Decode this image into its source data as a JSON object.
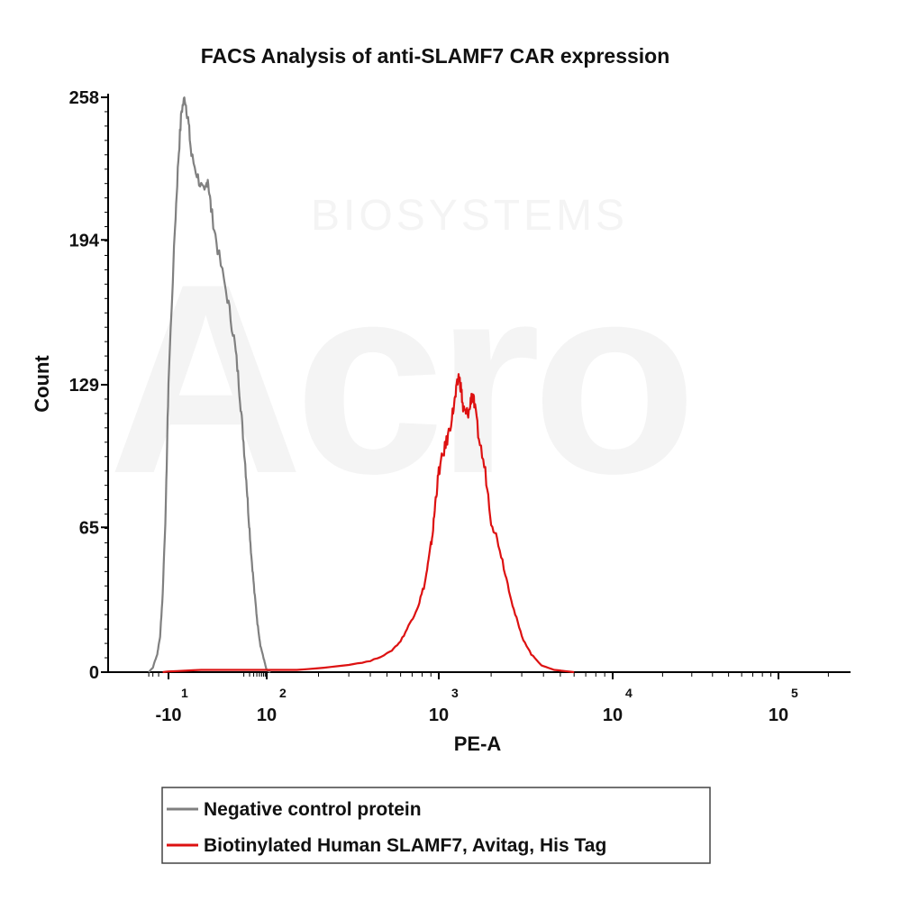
{
  "chart_data": {
    "type": "line",
    "title": "FACS Analysis of anti-SLAMF7 CAR expression",
    "xlabel": "PE-A",
    "ylabel": "Count",
    "x_scale": "biexponential",
    "ylim": [
      0,
      258
    ],
    "y_ticks": [
      "0",
      "65",
      "129",
      "194",
      "258"
    ],
    "x_ticks": [
      {
        "label": "-10",
        "exponent": "1",
        "value": -10
      },
      {
        "label": "10",
        "exponent": "2",
        "value": 100
      },
      {
        "label": "10",
        "exponent": "3",
        "value": 1000
      },
      {
        "label": "10",
        "exponent": "4",
        "value": 10000
      },
      {
        "label": "10",
        "exponent": "5",
        "value": 100000
      }
    ],
    "legend_position": "bottom",
    "series": [
      {
        "name": "Negative control protein",
        "color": "#808080",
        "points": [
          [
            -40,
            0
          ],
          [
            -30,
            2
          ],
          [
            -22,
            8
          ],
          [
            -18,
            16
          ],
          [
            -15,
            35
          ],
          [
            -12,
            75
          ],
          [
            -10,
            130
          ],
          [
            -8,
            200
          ],
          [
            -7,
            230
          ],
          [
            -6,
            252
          ],
          [
            -5,
            258
          ],
          [
            -4,
            248
          ],
          [
            -3,
            232
          ],
          [
            -1,
            222
          ],
          [
            1,
            214
          ],
          [
            2,
            222
          ],
          [
            3,
            208
          ],
          [
            5,
            190
          ],
          [
            8,
            168
          ],
          [
            10,
            150
          ],
          [
            14,
            130
          ],
          [
            18,
            110
          ],
          [
            23,
            90
          ],
          [
            28,
            70
          ],
          [
            34,
            52
          ],
          [
            42,
            36
          ],
          [
            52,
            22
          ],
          [
            64,
            12
          ],
          [
            78,
            7
          ],
          [
            88,
            4
          ],
          [
            95,
            2
          ],
          [
            105,
            0
          ]
        ]
      },
      {
        "name": "Biotinylated Human SLAMF7, Avitag, His Tag",
        "color": "#dd1111",
        "points": [
          [
            -15,
            0
          ],
          [
            0,
            1
          ],
          [
            50,
            1
          ],
          [
            150,
            1
          ],
          [
            280,
            3
          ],
          [
            400,
            5
          ],
          [
            520,
            9
          ],
          [
            600,
            14
          ],
          [
            680,
            22
          ],
          [
            760,
            30
          ],
          [
            830,
            40
          ],
          [
            880,
            52
          ],
          [
            920,
            62
          ],
          [
            960,
            78
          ],
          [
            1000,
            90
          ],
          [
            1060,
            98
          ],
          [
            1130,
            106
          ],
          [
            1200,
            116
          ],
          [
            1250,
            124
          ],
          [
            1300,
            133
          ],
          [
            1340,
            128
          ],
          [
            1380,
            118
          ],
          [
            1430,
            116
          ],
          [
            1500,
            117
          ],
          [
            1550,
            126
          ],
          [
            1600,
            120
          ],
          [
            1700,
            105
          ],
          [
            1850,
            90
          ],
          [
            2000,
            68
          ],
          [
            2200,
            58
          ],
          [
            2450,
            42
          ],
          [
            2700,
            28
          ],
          [
            3000,
            16
          ],
          [
            3400,
            8
          ],
          [
            3900,
            3
          ],
          [
            4600,
            1
          ],
          [
            6000,
            0
          ]
        ]
      }
    ]
  },
  "watermark": {
    "line1": "BIOSYSTEMS",
    "line2": "Acro"
  }
}
